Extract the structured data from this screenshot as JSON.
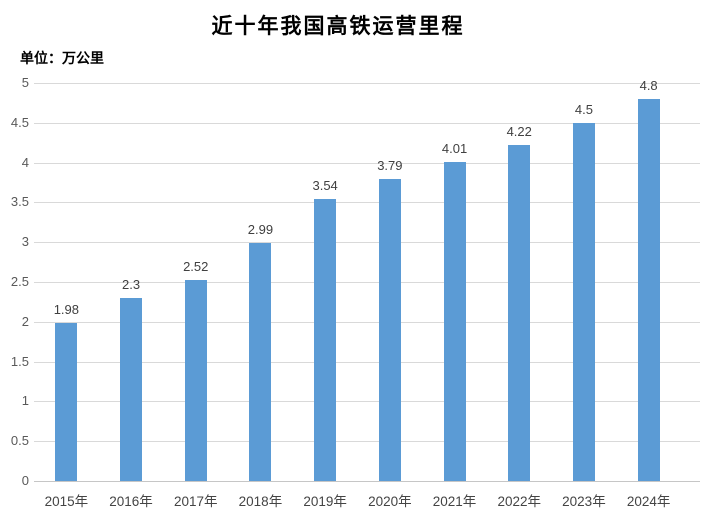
{
  "title": "近十年我国高铁运营里程",
  "unit_label": "单位：万公里",
  "colors": {
    "bar": "#5b9bd5",
    "gridline": "#d9d9d9",
    "axis_line": "#c6c6c6",
    "y_tick_label": "#595959",
    "x_tick_label": "#444444",
    "data_label": "#404040",
    "title": "#000000"
  },
  "chart_data": {
    "type": "bar",
    "title": "近十年我国高铁运营里程",
    "ylabel": "单位：万公里",
    "xlabel": "",
    "categories": [
      "2015年",
      "2016年",
      "2017年",
      "2018年",
      "2019年",
      "2020年",
      "2021年",
      "2022年",
      "2023年",
      "2024年"
    ],
    "values": [
      1.98,
      2.3,
      2.52,
      2.99,
      3.54,
      3.79,
      4.01,
      4.22,
      4.5,
      4.8
    ],
    "ylim": [
      0,
      5
    ],
    "y_ticks": [
      0,
      0.5,
      1,
      1.5,
      2,
      2.5,
      3,
      3.5,
      4,
      4.5,
      5
    ],
    "grid": true,
    "legend": false,
    "data_labels": true
  }
}
